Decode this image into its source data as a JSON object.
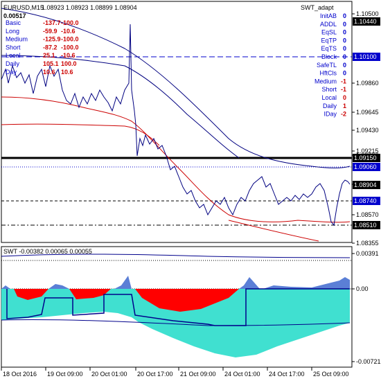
{
  "header": {
    "symbol": "EURUSD,M15",
    "ohlc": "1.08923 1.08923 1.08899 1.08904",
    "indicator": "SWT_adapt",
    "spread": "0.00517"
  },
  "left_stats": [
    {
      "label": "Basic",
      "v1": "-137.7",
      "v2": "-100.0",
      "color": "#cc0000"
    },
    {
      "label": "Long",
      "v1": "-59.9",
      "v2": "-10.6",
      "color": "#cc0000"
    },
    {
      "label": "Medium",
      "v1": "-125.9",
      "v2": "-100.0",
      "color": "#cc0000"
    },
    {
      "label": "Short",
      "v1": "-87.2",
      "v2": "-100.0",
      "color": "#cc0000"
    },
    {
      "label": "Local",
      "v1": "25.1",
      "v2": "-10.6",
      "color": "#cc0000"
    },
    {
      "label": "Daily",
      "v1": "105.1",
      "v2": "100.0",
      "color": "#cc0000"
    },
    {
      "label": "Day",
      "v1": "10.6",
      "v2": "10.6",
      "color": "#cc0000"
    }
  ],
  "right_stats": [
    {
      "label": "InitAB",
      "value": "0",
      "lcolor": "#0000cc",
      "vcolor": "#0000cc"
    },
    {
      "label": "ADDL",
      "value": "0",
      "lcolor": "#0000cc",
      "vcolor": "#0000cc"
    },
    {
      "label": "EqSL",
      "value": "0",
      "lcolor": "#0000cc",
      "vcolor": "#0000cc"
    },
    {
      "label": "EqTP",
      "value": "0",
      "lcolor": "#0000cc",
      "vcolor": "#0000cc"
    },
    {
      "label": "EqTS",
      "value": "0",
      "lcolor": "#0000cc",
      "vcolor": "#0000cc"
    },
    {
      "label": "Block",
      "value": "0",
      "lcolor": "#0000cc",
      "vcolor": "#0000cc"
    },
    {
      "label": "SafeTL",
      "value": "0",
      "lcolor": "#0000cc",
      "vcolor": "#0000cc"
    },
    {
      "label": "HftCls",
      "value": "0",
      "lcolor": "#0000cc",
      "vcolor": "#0000cc"
    },
    {
      "label": "Medium",
      "value": "-1",
      "lcolor": "#0000cc",
      "vcolor": "#cc0000"
    },
    {
      "label": "Short",
      "value": "-1",
      "lcolor": "#0000cc",
      "vcolor": "#cc0000"
    },
    {
      "label": "Local",
      "value": "0",
      "lcolor": "#0000cc",
      "vcolor": "#cc0000"
    },
    {
      "label": "Daily",
      "value": "1",
      "lcolor": "#0000cc",
      "vcolor": "#cc0000"
    },
    {
      "label": "IDay",
      "value": "-2",
      "lcolor": "#0000cc",
      "vcolor": "#cc0000"
    }
  ],
  "price_axis": {
    "ticks": [
      "1.10500",
      "1.09860",
      "1.09645",
      "1.09430",
      "1.09215",
      "1.09000",
      "1.08785",
      "1.08570",
      "1.08355"
    ],
    "labels": [
      {
        "text": "1.10440",
        "bg": "#000000",
        "fg": "#ffffff"
      },
      {
        "text": "1.10100",
        "bg": "#0000cc",
        "fg": "#ffffff"
      },
      {
        "text": "1.09150",
        "bg": "#000000",
        "fg": "#ffffff"
      },
      {
        "text": "1.09060",
        "bg": "#0000cc",
        "fg": "#ffffff"
      },
      {
        "text": "1.08904",
        "bg": "#000000",
        "fg": "#ffffff"
      },
      {
        "text": "1.08740",
        "bg": "#0000cc",
        "fg": "#ffffff"
      },
      {
        "text": "1.08510",
        "bg": "#000000",
        "fg": "#ffffff"
      }
    ]
  },
  "sub_panel": {
    "title": "SWT -0.00382 0.00065 0.00055",
    "ticks": [
      "0.00391",
      "0.00",
      "-0.00721"
    ]
  },
  "time_axis": [
    "18 Oct 2016",
    "19 Oct 09:00",
    "20 Oct 01:00",
    "20 Oct 17:00",
    "21 Oct 09:00",
    "24 Oct 01:00",
    "24 Oct 17:00",
    "25 Oct 09:00"
  ],
  "colors": {
    "price": "#000080",
    "ma_red": "#cc0000",
    "ma_blue": "#000080",
    "level_blue": "#0000cc",
    "level_black": "#000000",
    "hist_teal": "#40e0d0",
    "hist_red": "#ff0000",
    "hist_blue": "#5b7fd6"
  }
}
